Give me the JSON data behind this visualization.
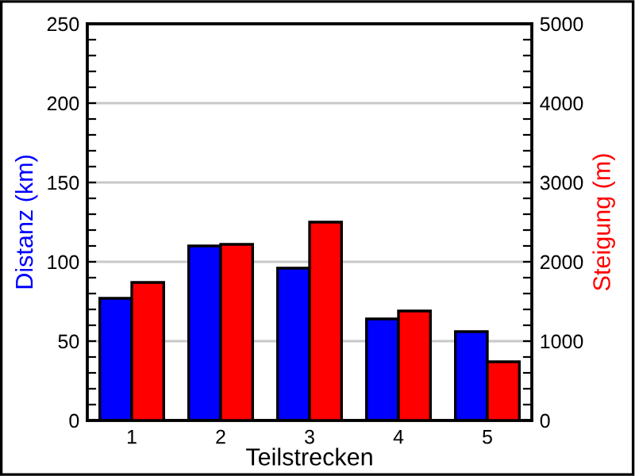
{
  "chart_data": {
    "type": "bar",
    "xlabel": "Teilstrecken",
    "ylabel": "Distanz (km)",
    "y2label": "Steigung (m)",
    "categories": [
      "1",
      "2",
      "3",
      "4",
      "5"
    ],
    "series": [
      {
        "color": "#0000ff",
        "values": [
          77,
          110,
          96,
          64,
          56
        ]
      },
      {
        "color": "#ff0000",
        "axis": "y2",
        "values": [
          1740,
          2220,
          2500,
          1380,
          740
        ]
      }
    ],
    "ylim": [
      0,
      250
    ],
    "yticks": [
      0,
      {
        "value": 10,
        "label": null
      },
      {
        "value": 20,
        "label": null
      },
      {
        "value": 30,
        "label": null
      },
      {
        "value": 40,
        "label": null
      },
      50,
      {
        "value": 60,
        "label": null
      },
      {
        "value": 70,
        "label": null
      },
      {
        "value": 80,
        "label": null
      },
      {
        "value": 90,
        "label": null
      },
      100,
      {
        "value": 110,
        "label": null
      },
      {
        "value": 120,
        "label": null
      },
      {
        "value": 130,
        "label": null
      },
      {
        "value": 140,
        "label": null
      },
      150,
      {
        "value": 160,
        "label": null
      },
      {
        "value": 170,
        "label": null
      },
      {
        "value": 180,
        "label": null
      },
      {
        "value": 190,
        "label": null
      },
      200,
      {
        "value": 210,
        "label": null
      },
      {
        "value": 220,
        "label": null
      },
      {
        "value": 230,
        "label": null
      },
      {
        "value": 240,
        "label": null
      },
      250
    ],
    "y2lim": [
      0,
      5000
    ],
    "y2ticks": [
      0,
      {
        "value": 200,
        "label": null
      },
      {
        "value": 400,
        "label": null
      },
      {
        "value": 600,
        "label": null
      },
      {
        "value": 800,
        "label": null
      },
      1000,
      {
        "value": 1200,
        "label": null
      },
      {
        "value": 1400,
        "label": null
      },
      {
        "value": 1600,
        "label": null
      },
      {
        "value": 1800,
        "label": null
      },
      2000,
      {
        "value": 2200,
        "label": null
      },
      {
        "value": 2400,
        "label": null
      },
      {
        "value": 2600,
        "label": null
      },
      {
        "value": 2800,
        "label": null
      },
      3000,
      {
        "value": 3200,
        "label": null
      },
      {
        "value": 3400,
        "label": null
      },
      {
        "value": 3600,
        "label": null
      },
      {
        "value": 3800,
        "label": null
      },
      4000,
      {
        "value": 4200,
        "label": null
      },
      {
        "value": 4400,
        "label": null
      },
      {
        "value": 4600,
        "label": null
      },
      {
        "value": 4800,
        "label": null
      },
      5000
    ],
    "grid": "y"
  }
}
